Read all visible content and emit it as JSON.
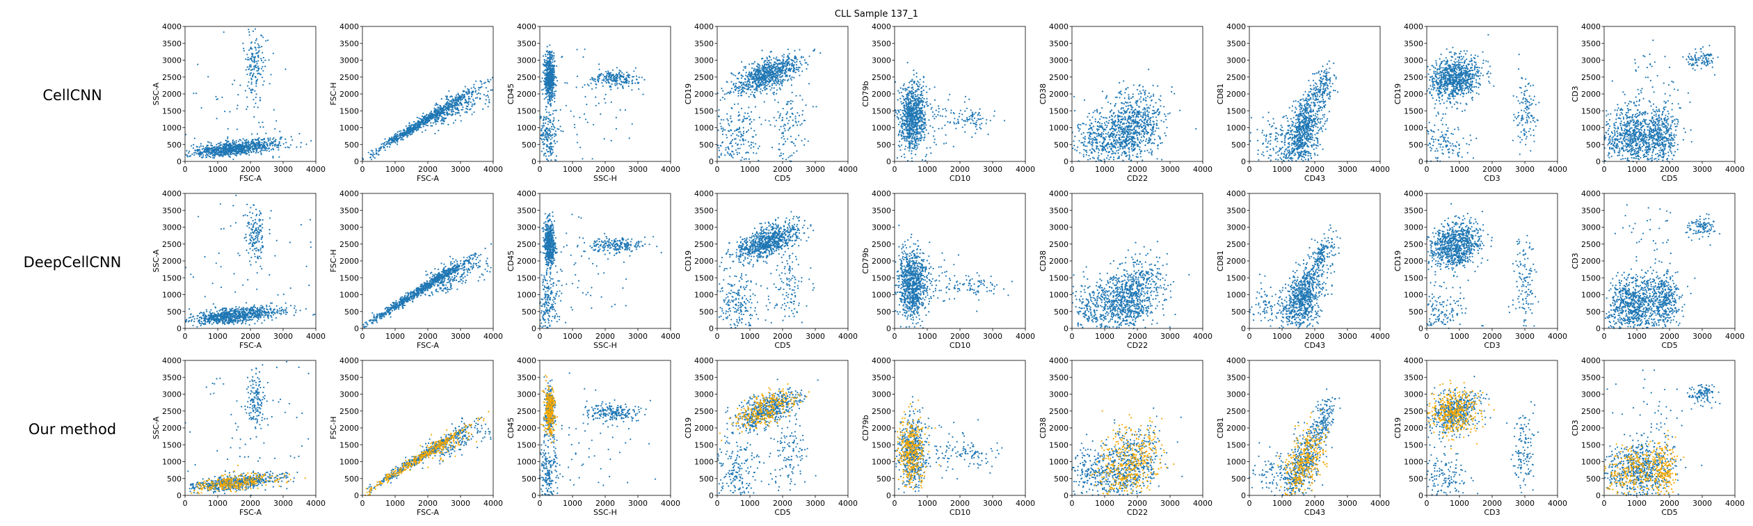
{
  "figure": {
    "title": "CLL Sample 137_1",
    "row_labels": [
      "CellCNN",
      "DeepCellCNN",
      "Our method"
    ],
    "colors": {
      "cells": "#1f77b4",
      "highlight": "#f5a800"
    }
  },
  "chart_data": {
    "type": "scatter",
    "title": "CLL Sample 137_1",
    "grid": false,
    "axis_range": [
      0,
      4000
    ],
    "ticks": [
      0,
      500,
      1000,
      1500,
      2000,
      2500,
      3000,
      3500,
      4000
    ],
    "x_ticks": [
      0,
      1000,
      2000,
      3000,
      4000
    ],
    "panels": [
      {
        "xlabel": "FSC-A",
        "ylabel": "SSC-A",
        "clusters": [
          {
            "cx": 1700,
            "cy": 420,
            "sx": 650,
            "sy": 120,
            "n": 600,
            "corr": 0.45,
            "hl": 0.35
          },
          {
            "cx": 1100,
            "cy": 300,
            "sx": 500,
            "sy": 90,
            "n": 250,
            "corr": 0.3,
            "hl": 0.3
          },
          {
            "cx": 2150,
            "cy": 2800,
            "sx": 150,
            "sy": 450,
            "n": 140,
            "corr": 0,
            "hl": 0
          },
          {
            "cx": 2000,
            "cy": 1800,
            "sx": 1400,
            "sy": 1300,
            "n": 90,
            "corr": 0,
            "hl": 0
          }
        ]
      },
      {
        "xlabel": "FSC-A",
        "ylabel": "FSC-H",
        "clusters": [
          {
            "cx": 1800,
            "cy": 1150,
            "sx": 800,
            "sy": 500,
            "n": 750,
            "corr": 0.99,
            "hl": 0.4
          },
          {
            "cx": 2600,
            "cy": 1500,
            "sx": 350,
            "sy": 250,
            "n": 200,
            "corr": 0.6,
            "hl": 0.3
          },
          {
            "cx": 3400,
            "cy": 1800,
            "sx": 400,
            "sy": 200,
            "n": 60,
            "corr": 0.3,
            "hl": 0
          }
        ]
      },
      {
        "xlabel": "SSC-H",
        "ylabel": "CD45",
        "clusters": [
          {
            "cx": 300,
            "cy": 2500,
            "sx": 80,
            "sy": 350,
            "n": 550,
            "corr": 0,
            "hl": 0.5
          },
          {
            "cx": 250,
            "cy": 700,
            "sx": 150,
            "sy": 500,
            "n": 200,
            "corr": 0,
            "hl": 0
          },
          {
            "cx": 2300,
            "cy": 2450,
            "sx": 400,
            "sy": 120,
            "n": 200,
            "corr": 0,
            "hl": 0
          },
          {
            "cx": 1200,
            "cy": 1600,
            "sx": 900,
            "sy": 900,
            "n": 70,
            "corr": 0,
            "hl": 0
          }
        ]
      },
      {
        "xlabel": "CD5",
        "ylabel": "CD19",
        "clusters": [
          {
            "cx": 1500,
            "cy": 2550,
            "sx": 500,
            "sy": 280,
            "n": 800,
            "corr": 0.6,
            "hl": 0.35
          },
          {
            "cx": 600,
            "cy": 700,
            "sx": 350,
            "sy": 500,
            "n": 200,
            "corr": 0,
            "hl": 0
          },
          {
            "cx": 2200,
            "cy": 1200,
            "sx": 300,
            "sy": 600,
            "n": 120,
            "corr": 0,
            "hl": 0
          }
        ]
      },
      {
        "xlabel": "CD10",
        "ylabel": "CD79b",
        "clusters": [
          {
            "cx": 550,
            "cy": 1300,
            "sx": 220,
            "sy": 500,
            "n": 850,
            "corr": 0,
            "hl": 0.4
          },
          {
            "cx": 2400,
            "cy": 1250,
            "sx": 400,
            "sy": 180,
            "n": 70,
            "corr": 0,
            "hl": 0
          },
          {
            "cx": 1400,
            "cy": 1300,
            "sx": 500,
            "sy": 400,
            "n": 60,
            "corr": 0,
            "hl": 0
          }
        ]
      },
      {
        "xlabel": "CD22",
        "ylabel": "CD38",
        "clusters": [
          {
            "cx": 1750,
            "cy": 900,
            "sx": 500,
            "sy": 550,
            "n": 900,
            "corr": 0.3,
            "hl": 0.45
          },
          {
            "cx": 700,
            "cy": 700,
            "sx": 400,
            "sy": 400,
            "n": 200,
            "corr": 0,
            "hl": 0
          }
        ]
      },
      {
        "xlabel": "CD43",
        "ylabel": "CD81",
        "clusters": [
          {
            "cx": 1650,
            "cy": 900,
            "sx": 300,
            "sy": 550,
            "n": 750,
            "corr": 0.5,
            "hl": 0.45
          },
          {
            "cx": 2250,
            "cy": 2200,
            "sx": 200,
            "sy": 350,
            "n": 150,
            "corr": 0.5,
            "hl": 0
          },
          {
            "cx": 800,
            "cy": 600,
            "sx": 400,
            "sy": 400,
            "n": 120,
            "corr": 0,
            "hl": 0
          }
        ]
      },
      {
        "xlabel": "CD3",
        "ylabel": "CD19",
        "clusters": [
          {
            "cx": 850,
            "cy": 2450,
            "sx": 400,
            "sy": 330,
            "n": 850,
            "corr": 0.2,
            "hl": 0.45
          },
          {
            "cx": 500,
            "cy": 500,
            "sx": 400,
            "sy": 400,
            "n": 150,
            "corr": 0,
            "hl": 0
          },
          {
            "cx": 3000,
            "cy": 1400,
            "sx": 180,
            "sy": 600,
            "n": 120,
            "corr": 0,
            "hl": 0
          }
        ]
      },
      {
        "xlabel": "CD5",
        "ylabel": "CD3",
        "clusters": [
          {
            "cx": 1000,
            "cy": 700,
            "sx": 520,
            "sy": 450,
            "n": 900,
            "corr": 0.1,
            "hl": 0.3
          },
          {
            "cx": 1850,
            "cy": 800,
            "sx": 200,
            "sy": 400,
            "n": 220,
            "corr": 0,
            "hl": 0.75
          },
          {
            "cx": 3000,
            "cy": 3000,
            "sx": 200,
            "sy": 150,
            "n": 100,
            "corr": 0,
            "hl": 0
          },
          {
            "cx": 1500,
            "cy": 2500,
            "sx": 700,
            "sy": 600,
            "n": 40,
            "corr": 0,
            "hl": 0
          }
        ]
      }
    ]
  }
}
